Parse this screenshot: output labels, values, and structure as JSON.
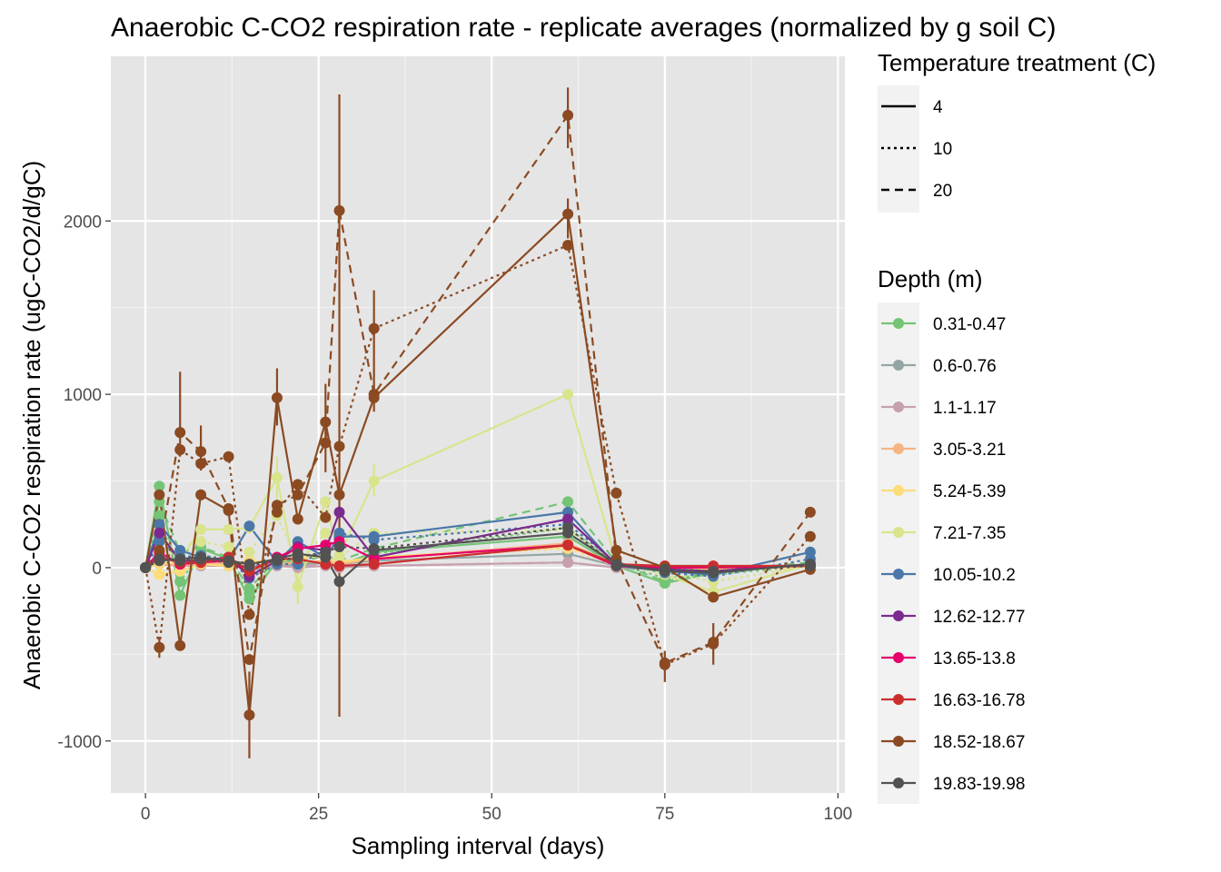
{
  "chart_data": {
    "type": "line",
    "title": "Anaerobic C-CO2 respiration rate - replicate averages (normalized by g soil C)",
    "xlabel": "Sampling interval (days)",
    "ylabel": "Anaerobic C-CO2 respiration rate (ugC-CO2/d/gC)",
    "xlim": [
      -5,
      101
    ],
    "ylim": [
      -1300,
      2950
    ],
    "xticks": [
      0,
      25,
      50,
      75,
      100
    ],
    "xtick_labels": [
      "0",
      "25",
      "50",
      "75",
      "100"
    ],
    "yticks": [
      -1000,
      0,
      1000,
      2000
    ],
    "ytick_labels": [
      "-1000",
      "0",
      "1000",
      "2000"
    ],
    "grid": true,
    "legend_placement": "right",
    "temperature_legend": {
      "title": "Temperature treatment (C)",
      "items": [
        {
          "label": "4",
          "linestyle": "solid"
        },
        {
          "label": "10",
          "linestyle": "dotted"
        },
        {
          "label": "20",
          "linestyle": "dashed"
        }
      ]
    },
    "depth_legend": {
      "title": "Depth (m)",
      "items": [
        {
          "label": "0.31-0.47",
          "color": "#74c476"
        },
        {
          "label": "0.6-0.76",
          "color": "#95a5a6"
        },
        {
          "label": "1.1-1.17",
          "color": "#c7a0ae"
        },
        {
          "label": "3.05-3.21",
          "color": "#f6b482"
        },
        {
          "label": "5.24-5.39",
          "color": "#fddc7a"
        },
        {
          "label": "7.21-7.35",
          "color": "#d9e48c"
        },
        {
          "label": "10.05-10.2",
          "color": "#4a77a8"
        },
        {
          "label": "12.62-12.77",
          "color": "#7b2a8e"
        },
        {
          "label": "13.65-13.8",
          "color": "#e6006e"
        },
        {
          "label": "16.63-16.78",
          "color": "#cc2e2e"
        },
        {
          "label": "18.52-18.67",
          "color": "#8b4a22"
        },
        {
          "label": "19.83-19.98",
          "color": "#525252"
        }
      ]
    },
    "x": [
      0,
      2,
      5,
      8,
      12,
      15,
      19,
      22,
      26,
      28,
      33,
      61,
      68,
      75,
      82,
      96
    ],
    "series": [
      {
        "depth": "0.31-0.47",
        "temp": "4",
        "color": "#74c476",
        "values": [
          0,
          470,
          -160,
          110,
          50,
          -180,
          40,
          20,
          40,
          10,
          90,
          180,
          10,
          -90,
          -30,
          20
        ]
      },
      {
        "depth": "0.31-0.47",
        "temp": "10",
        "color": "#74c476",
        "values": [
          0,
          300,
          -80,
          80,
          30,
          -150,
          30,
          10,
          30,
          20,
          80,
          230,
          20,
          -60,
          -40,
          10
        ]
      },
      {
        "depth": "0.31-0.47",
        "temp": "20",
        "color": "#74c476",
        "values": [
          0,
          380,
          90,
          120,
          60,
          -120,
          50,
          30,
          70,
          40,
          110,
          380,
          30,
          -80,
          -20,
          30
        ]
      },
      {
        "depth": "0.6-0.76",
        "temp": "4",
        "color": "#95a5a6",
        "values": [
          0,
          70,
          30,
          40,
          30,
          -20,
          20,
          10,
          30,
          20,
          40,
          80,
          10,
          -10,
          -10,
          10
        ]
      },
      {
        "depth": "1.1-1.17",
        "temp": "4",
        "color": "#c7a0ae",
        "values": [
          0,
          20,
          10,
          10,
          10,
          0,
          10,
          0,
          10,
          0,
          10,
          30,
          0,
          -10,
          0,
          10
        ]
      },
      {
        "depth": "1.1-1.17",
        "temp": "20",
        "color": "#c7a0ae",
        "values": [
          0,
          30,
          20,
          20,
          10,
          10,
          10,
          10,
          20,
          10,
          10,
          30,
          0,
          0,
          0,
          10
        ]
      },
      {
        "depth": "3.05-3.21",
        "temp": "4",
        "color": "#f6b482",
        "values": [
          0,
          30,
          10,
          30,
          20,
          -10,
          20,
          30,
          40,
          20,
          50,
          140,
          20,
          -10,
          -20,
          10
        ]
      },
      {
        "depth": "5.24-5.39",
        "temp": "4",
        "color": "#fddc7a",
        "values": [
          0,
          -40,
          -20,
          20,
          10,
          40,
          30,
          70,
          60,
          30,
          60,
          120,
          20,
          -20,
          -10,
          10
        ]
      },
      {
        "depth": "5.24-5.39",
        "temp": "10",
        "color": "#fddc7a",
        "values": [
          0,
          20,
          30,
          40,
          30,
          20,
          40,
          50,
          70,
          40,
          50,
          110,
          10,
          -10,
          -10,
          0
        ]
      },
      {
        "depth": "7.21-7.35",
        "temp": "4",
        "color": "#d9e48c",
        "values": [
          0,
          200,
          50,
          220,
          220,
          230,
          520,
          -110,
          380,
          70,
          500,
          1000,
          30,
          -40,
          -140,
          20
        ]
      },
      {
        "depth": "7.21-7.35",
        "temp": "10",
        "color": "#d9e48c",
        "values": [
          0,
          150,
          30,
          150,
          120,
          90,
          300,
          30,
          200,
          60,
          200,
          220,
          20,
          -30,
          -80,
          10
        ]
      },
      {
        "depth": "10.05-10.2",
        "temp": "4",
        "color": "#4a77a8",
        "values": [
          0,
          250,
          100,
          60,
          40,
          240,
          30,
          150,
          60,
          180,
          180,
          320,
          10,
          -20,
          -40,
          90
        ]
      },
      {
        "depth": "10.05-10.2",
        "temp": "10",
        "color": "#4a77a8",
        "values": [
          0,
          150,
          60,
          70,
          50,
          -60,
          20,
          20,
          100,
          200,
          160,
          250,
          30,
          -30,
          -50,
          50
        ]
      },
      {
        "depth": "12.62-12.77",
        "temp": "4",
        "color": "#7b2a8e",
        "values": [
          0,
          200,
          40,
          40,
          60,
          -50,
          40,
          120,
          100,
          320,
          60,
          280,
          20,
          -10,
          -20,
          20
        ]
      },
      {
        "depth": "13.65-13.8",
        "temp": "4",
        "color": "#e6006e",
        "values": [
          0,
          90,
          20,
          30,
          40,
          -20,
          60,
          110,
          130,
          150,
          50,
          130,
          10,
          0,
          0,
          10
        ]
      },
      {
        "depth": "16.63-16.78",
        "temp": "4",
        "color": "#cc2e2e",
        "values": [
          0,
          60,
          30,
          30,
          60,
          -20,
          50,
          50,
          20,
          10,
          20,
          130,
          20,
          10,
          10,
          10
        ]
      },
      {
        "depth": "18.52-18.67",
        "temp": "4",
        "color": "#8b4a22",
        "values": [
          0,
          420,
          -450,
          420,
          330,
          -850,
          980,
          280,
          840,
          420,
          980,
          2040,
          100,
          0,
          -170,
          -10
        ]
      },
      {
        "depth": "18.52-18.67",
        "temp": "10",
        "color": "#8b4a22",
        "values": [
          0,
          -460,
          680,
          600,
          640,
          -270,
          320,
          480,
          290,
          700,
          1380,
          1860,
          430,
          -560,
          -440,
          180
        ]
      },
      {
        "depth": "18.52-18.67",
        "temp": "20",
        "color": "#8b4a22",
        "values": [
          0,
          100,
          780,
          670,
          340,
          -530,
          360,
          420,
          720,
          2060,
          1000,
          2610,
          50,
          -550,
          -430,
          320
        ]
      },
      {
        "depth": "19.83-19.98",
        "temp": "4",
        "color": "#525252",
        "values": [
          0,
          40,
          50,
          60,
          40,
          20,
          50,
          80,
          60,
          -80,
          100,
          200,
          20,
          -20,
          -30,
          20
        ]
      },
      {
        "depth": "19.83-19.98",
        "temp": "10",
        "color": "#525252",
        "values": [
          0,
          50,
          40,
          50,
          30,
          10,
          40,
          60,
          90,
          120,
          110,
          230,
          10,
          -10,
          -20,
          10
        ]
      }
    ],
    "errorbars": [
      {
        "x": 5,
        "low": 640,
        "high": 1130,
        "color": "#8b4a22"
      },
      {
        "x": 8,
        "low": 560,
        "high": 820,
        "color": "#8b4a22"
      },
      {
        "x": 15,
        "low": -1100,
        "high": -600,
        "color": "#8b4a22"
      },
      {
        "x": 19,
        "low": 820,
        "high": 1150,
        "color": "#8b4a22"
      },
      {
        "x": 26,
        "low": 550,
        "high": 1060,
        "color": "#8b4a22"
      },
      {
        "x": 28,
        "low": -860,
        "high": 2730,
        "color": "#8b4a22"
      },
      {
        "x": 33,
        "low": 900,
        "high": 1600,
        "color": "#8b4a22"
      },
      {
        "x": 61,
        "low": 2420,
        "high": 2770,
        "color": "#8b4a22"
      },
      {
        "x": 61,
        "low": 1900,
        "high": 2130,
        "color": "#8b4a22"
      },
      {
        "x": 75,
        "low": -660,
        "high": -480,
        "color": "#8b4a22"
      },
      {
        "x": 82,
        "low": -560,
        "high": -320,
        "color": "#8b4a22"
      },
      {
        "x": 2,
        "low": -520,
        "high": -400,
        "color": "#8b4a22"
      },
      {
        "x": 19,
        "low": 380,
        "high": 640,
        "color": "#d9e48c"
      },
      {
        "x": 33,
        "low": 410,
        "high": 600,
        "color": "#d9e48c"
      },
      {
        "x": 22,
        "low": -210,
        "high": 0,
        "color": "#d9e48c"
      }
    ]
  }
}
